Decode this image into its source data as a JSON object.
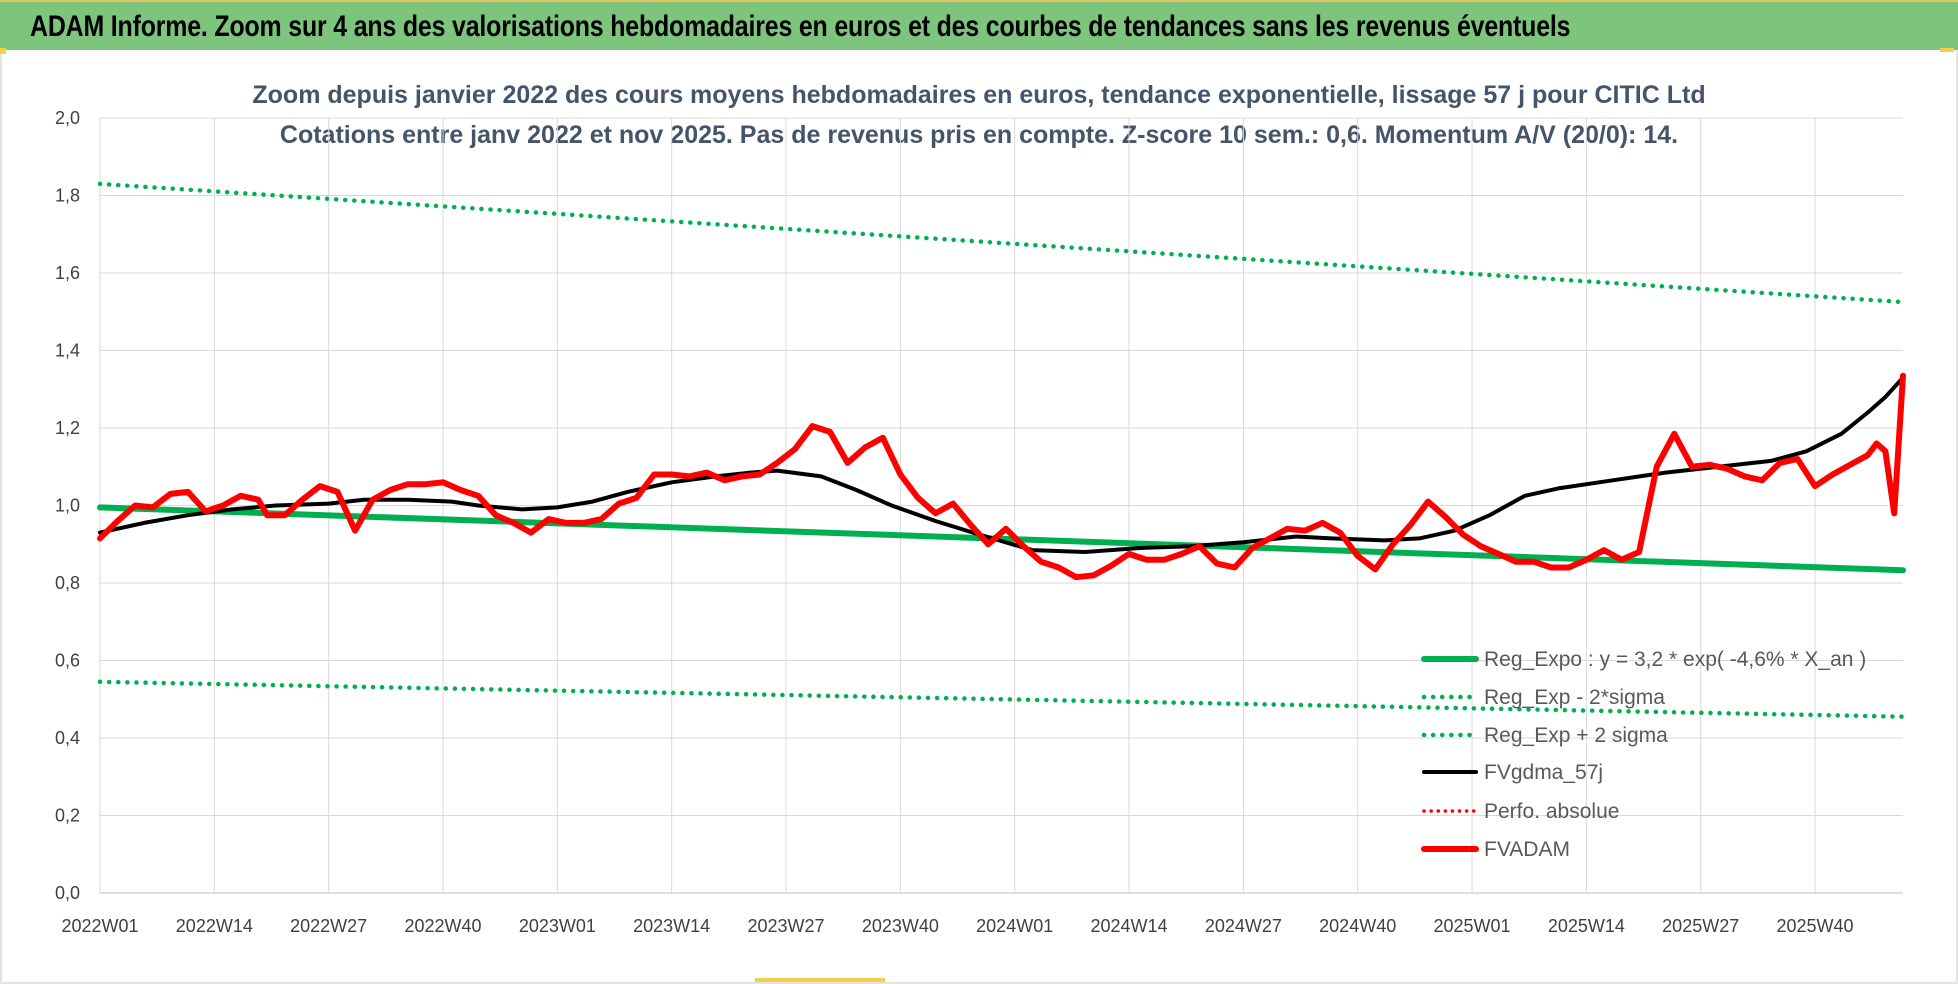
{
  "header": {
    "title": "ADAM Informe. Zoom sur 4 ans des valorisations hebdomadaires en euros et des courbes de tendances sans les revenus éventuels"
  },
  "colors": {
    "header_bg": "#7dc57d",
    "reg_expo": "#00b050",
    "bands": "#00b050",
    "fvgdma": "#000000",
    "perfo": "#ff0000",
    "fvadam": "#ff0000"
  },
  "chart_data": {
    "type": "line",
    "title_lines": [
      "Zoom depuis janvier 2022 des cours moyens hebdomadaires en euros, tendance exponentielle, lissage 57 j pour CITIC Ltd",
      "Cotations entre janv 2022 et nov 2025. Pas de revenus pris en compte. Z-score 10 sem.: 0,6. Momentum A/V (20/0): 14."
    ],
    "ylim": [
      0,
      2
    ],
    "y_ticks": [
      "0,0",
      "0,2",
      "0,4",
      "0,6",
      "0,8",
      "1,0",
      "1,2",
      "1,4",
      "1,6",
      "1,8",
      "2,0"
    ],
    "x_ticks": [
      "2022W01",
      "2022W14",
      "2022W27",
      "2022W40",
      "2023W01",
      "2023W14",
      "2023W27",
      "2023W40",
      "2024W01",
      "2024W14",
      "2024W27",
      "2024W40",
      "2025W01",
      "2025W14",
      "2025W27",
      "2025W40"
    ],
    "weeks_total": 206,
    "legend_position": "right",
    "grid": true,
    "series": [
      {
        "key": "reg_expo",
        "name": "Reg_Expo : y = 3,2 * exp( -4,6% * X_an )",
        "style": "solid",
        "points": [
          [
            0,
            0.995
          ],
          [
            205,
            0.833
          ]
        ]
      },
      {
        "key": "reg_minus",
        "name": "Reg_Exp - 2*sigma",
        "style": "dotted",
        "points": [
          [
            0,
            0.545
          ],
          [
            205,
            0.455
          ]
        ]
      },
      {
        "key": "reg_plus",
        "name": "Reg_Exp + 2 sigma",
        "style": "dotted",
        "points": [
          [
            0,
            1.83
          ],
          [
            205,
            1.525
          ]
        ]
      },
      {
        "key": "fvgdma",
        "name": "FVgdma_57j",
        "style": "solid",
        "points": [
          [
            0,
            0.93
          ],
          [
            5,
            0.955
          ],
          [
            10,
            0.975
          ],
          [
            15,
            0.99
          ],
          [
            20,
            1.0
          ],
          [
            26,
            1.005
          ],
          [
            30,
            1.015
          ],
          [
            35,
            1.015
          ],
          [
            40,
            1.01
          ],
          [
            43,
            1.0
          ],
          [
            48,
            0.99
          ],
          [
            52,
            0.995
          ],
          [
            56,
            1.01
          ],
          [
            60,
            1.035
          ],
          [
            65,
            1.06
          ],
          [
            70,
            1.075
          ],
          [
            74,
            1.085
          ],
          [
            77,
            1.09
          ],
          [
            82,
            1.075
          ],
          [
            86,
            1.04
          ],
          [
            90,
            1.0
          ],
          [
            95,
            0.96
          ],
          [
            100,
            0.925
          ],
          [
            106,
            0.885
          ],
          [
            112,
            0.88
          ],
          [
            118,
            0.89
          ],
          [
            124,
            0.895
          ],
          [
            130,
            0.905
          ],
          [
            136,
            0.92
          ],
          [
            140,
            0.915
          ],
          [
            146,
            0.91
          ],
          [
            150,
            0.915
          ],
          [
            154,
            0.935
          ],
          [
            158,
            0.975
          ],
          [
            162,
            1.025
          ],
          [
            166,
            1.045
          ],
          [
            172,
            1.065
          ],
          [
            178,
            1.085
          ],
          [
            184,
            1.1
          ],
          [
            190,
            1.115
          ],
          [
            194,
            1.14
          ],
          [
            198,
            1.185
          ],
          [
            201,
            1.24
          ],
          [
            203,
            1.28
          ],
          [
            205,
            1.33
          ]
        ]
      },
      {
        "key": "perfo",
        "name": "Perfo. absolue",
        "style": "dotted",
        "points": []
      },
      {
        "key": "fvadam",
        "name": "FVADAM",
        "style": "solid",
        "points": [
          [
            0,
            0.915
          ],
          [
            2,
            0.96
          ],
          [
            4,
            1.0
          ],
          [
            6,
            0.995
          ],
          [
            8,
            1.03
          ],
          [
            10,
            1.035
          ],
          [
            12,
            0.985
          ],
          [
            14,
            1.0
          ],
          [
            16,
            1.025
          ],
          [
            18,
            1.015
          ],
          [
            19,
            0.975
          ],
          [
            21,
            0.975
          ],
          [
            23,
            1.015
          ],
          [
            25,
            1.05
          ],
          [
            27,
            1.035
          ],
          [
            29,
            0.935
          ],
          [
            31,
            1.015
          ],
          [
            33,
            1.04
          ],
          [
            35,
            1.055
          ],
          [
            37,
            1.055
          ],
          [
            39,
            1.06
          ],
          [
            41,
            1.04
          ],
          [
            43,
            1.025
          ],
          [
            45,
            0.975
          ],
          [
            47,
            0.955
          ],
          [
            49,
            0.93
          ],
          [
            51,
            0.965
          ],
          [
            53,
            0.955
          ],
          [
            55,
            0.955
          ],
          [
            57,
            0.965
          ],
          [
            59,
            1.005
          ],
          [
            61,
            1.02
          ],
          [
            63,
            1.08
          ],
          [
            65,
            1.08
          ],
          [
            67,
            1.075
          ],
          [
            69,
            1.085
          ],
          [
            71,
            1.065
          ],
          [
            73,
            1.075
          ],
          [
            75,
            1.08
          ],
          [
            77,
            1.11
          ],
          [
            79,
            1.145
          ],
          [
            81,
            1.205
          ],
          [
            83,
            1.19
          ],
          [
            85,
            1.11
          ],
          [
            87,
            1.15
          ],
          [
            89,
            1.175
          ],
          [
            91,
            1.08
          ],
          [
            93,
            1.02
          ],
          [
            95,
            0.98
          ],
          [
            97,
            1.005
          ],
          [
            99,
            0.95
          ],
          [
            101,
            0.9
          ],
          [
            103,
            0.94
          ],
          [
            105,
            0.895
          ],
          [
            107,
            0.855
          ],
          [
            109,
            0.84
          ],
          [
            111,
            0.815
          ],
          [
            113,
            0.82
          ],
          [
            115,
            0.845
          ],
          [
            117,
            0.875
          ],
          [
            119,
            0.86
          ],
          [
            121,
            0.86
          ],
          [
            123,
            0.875
          ],
          [
            125,
            0.895
          ],
          [
            127,
            0.85
          ],
          [
            129,
            0.84
          ],
          [
            131,
            0.89
          ],
          [
            133,
            0.915
          ],
          [
            135,
            0.94
          ],
          [
            137,
            0.935
          ],
          [
            139,
            0.955
          ],
          [
            141,
            0.93
          ],
          [
            143,
            0.87
          ],
          [
            145,
            0.835
          ],
          [
            147,
            0.9
          ],
          [
            149,
            0.95
          ],
          [
            151,
            1.01
          ],
          [
            153,
            0.97
          ],
          [
            155,
            0.925
          ],
          [
            157,
            0.895
          ],
          [
            159,
            0.875
          ],
          [
            161,
            0.855
          ],
          [
            163,
            0.855
          ],
          [
            165,
            0.84
          ],
          [
            167,
            0.84
          ],
          [
            169,
            0.86
          ],
          [
            171,
            0.885
          ],
          [
            173,
            0.86
          ],
          [
            175,
            0.88
          ],
          [
            177,
            1.1
          ],
          [
            179,
            1.185
          ],
          [
            181,
            1.1
          ],
          [
            183,
            1.105
          ],
          [
            185,
            1.095
          ],
          [
            187,
            1.075
          ],
          [
            189,
            1.065
          ],
          [
            191,
            1.11
          ],
          [
            193,
            1.12
          ],
          [
            195,
            1.05
          ],
          [
            197,
            1.08
          ],
          [
            199,
            1.105
          ],
          [
            201,
            1.13
          ],
          [
            202,
            1.16
          ],
          [
            203,
            1.14
          ],
          [
            204,
            0.98
          ],
          [
            205,
            1.335
          ]
        ]
      }
    ]
  }
}
